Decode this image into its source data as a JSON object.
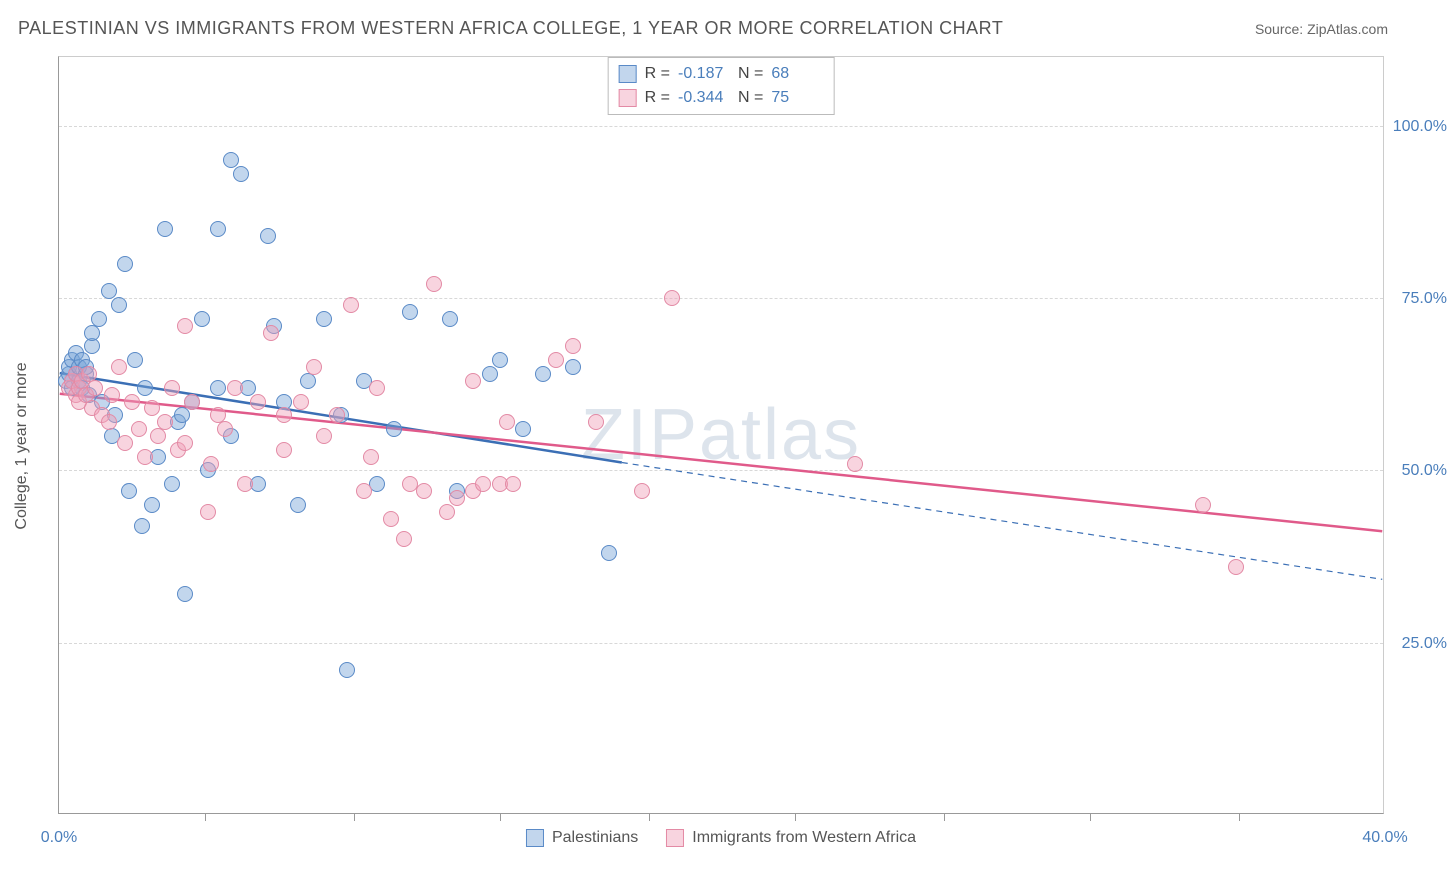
{
  "title": "PALESTINIAN VS IMMIGRANTS FROM WESTERN AFRICA COLLEGE, 1 YEAR OR MORE CORRELATION CHART",
  "source": "Source: ZipAtlas.com",
  "watermark": "ZIPatlas",
  "y_axis_label": "College, 1 year or more",
  "chart": {
    "type": "scatter",
    "xlim": [
      0,
      40
    ],
    "ylim": [
      0,
      110
    ],
    "x_ticks_major": [
      0,
      40
    ],
    "x_ticks_minor": [
      4.4,
      8.9,
      13.3,
      17.8,
      22.2,
      26.7,
      31.1,
      35.6
    ],
    "y_ticks": [
      25,
      50,
      75,
      100
    ],
    "x_tick_labels": {
      "0": "0.0%",
      "40": "40.0%"
    },
    "y_tick_labels": {
      "25": "25.0%",
      "50": "50.0%",
      "75": "75.0%",
      "100": "100.0%"
    },
    "background_color": "#ffffff",
    "grid_color": "#d8d8d8",
    "axis_color": "#999999",
    "marker_radius": 8,
    "marker_border_width": 1.2
  },
  "series": [
    {
      "name": "Palestinians",
      "fill_color": "rgba(120,165,216,0.45)",
      "stroke_color": "#5a8ac7",
      "line_color": "#3b6fb5",
      "line_width": 2.5,
      "R": "-0.187",
      "N": "68",
      "regression": {
        "x1": 0,
        "y1": 64,
        "x2_solid": 17,
        "y2_solid": 51,
        "x2": 40,
        "y2": 34,
        "dashed_after_solid": true
      },
      "points": [
        [
          0.2,
          63
        ],
        [
          0.3,
          64
        ],
        [
          0.3,
          65
        ],
        [
          0.4,
          62
        ],
        [
          0.4,
          66
        ],
        [
          0.5,
          64
        ],
        [
          0.5,
          67
        ],
        [
          0.6,
          63
        ],
        [
          0.6,
          65
        ],
        [
          0.7,
          62
        ],
        [
          0.7,
          66
        ],
        [
          0.8,
          64
        ],
        [
          0.8,
          65
        ],
        [
          0.9,
          61
        ],
        [
          1.0,
          68
        ],
        [
          1.0,
          70
        ],
        [
          1.2,
          72
        ],
        [
          1.3,
          60
        ],
        [
          1.5,
          76
        ],
        [
          1.6,
          55
        ],
        [
          1.7,
          58
        ],
        [
          1.8,
          74
        ],
        [
          2.0,
          80
        ],
        [
          2.1,
          47
        ],
        [
          2.3,
          66
        ],
        [
          2.5,
          42
        ],
        [
          2.6,
          62
        ],
        [
          2.8,
          45
        ],
        [
          3.0,
          52
        ],
        [
          3.2,
          85
        ],
        [
          3.4,
          48
        ],
        [
          3.6,
          57
        ],
        [
          3.7,
          58
        ],
        [
          3.8,
          32
        ],
        [
          4.0,
          60
        ],
        [
          4.3,
          72
        ],
        [
          4.5,
          50
        ],
        [
          4.8,
          62
        ],
        [
          4.8,
          85
        ],
        [
          5.2,
          95
        ],
        [
          5.2,
          55
        ],
        [
          5.5,
          93
        ],
        [
          5.7,
          62
        ],
        [
          6.0,
          48
        ],
        [
          6.3,
          84
        ],
        [
          6.5,
          71
        ],
        [
          6.8,
          60
        ],
        [
          7.2,
          45
        ],
        [
          7.5,
          63
        ],
        [
          8.0,
          72
        ],
        [
          8.5,
          58
        ],
        [
          8.7,
          21
        ],
        [
          9.2,
          63
        ],
        [
          9.6,
          48
        ],
        [
          10.1,
          56
        ],
        [
          10.6,
          73
        ],
        [
          11.8,
          72
        ],
        [
          12.0,
          47
        ],
        [
          13.0,
          64
        ],
        [
          13.3,
          66
        ],
        [
          14.0,
          56
        ],
        [
          14.6,
          64
        ],
        [
          16.6,
          38
        ],
        [
          15.5,
          65
        ]
      ]
    },
    {
      "name": "Immigrants from Western Africa",
      "fill_color": "rgba(240,160,185,0.45)",
      "stroke_color": "#e38aa5",
      "line_color": "#e05a8a",
      "line_width": 2.5,
      "R": "-0.344",
      "N": "75",
      "regression": {
        "x1": 0,
        "y1": 61,
        "x2_solid": 40,
        "y2_solid": 41,
        "x2": 40,
        "y2": 41,
        "dashed_after_solid": false
      },
      "points": [
        [
          0.3,
          62
        ],
        [
          0.4,
          63
        ],
        [
          0.5,
          61
        ],
        [
          0.5,
          64
        ],
        [
          0.6,
          60
        ],
        [
          0.6,
          62
        ],
        [
          0.7,
          63
        ],
        [
          0.8,
          61
        ],
        [
          0.9,
          64
        ],
        [
          1.0,
          59
        ],
        [
          1.1,
          62
        ],
        [
          1.3,
          58
        ],
        [
          1.5,
          57
        ],
        [
          1.6,
          61
        ],
        [
          1.8,
          65
        ],
        [
          2.0,
          54
        ],
        [
          2.2,
          60
        ],
        [
          2.4,
          56
        ],
        [
          2.6,
          52
        ],
        [
          2.8,
          59
        ],
        [
          3.0,
          55
        ],
        [
          3.2,
          57
        ],
        [
          3.4,
          62
        ],
        [
          3.6,
          53
        ],
        [
          3.8,
          54
        ],
        [
          3.8,
          71
        ],
        [
          4.0,
          60
        ],
        [
          4.5,
          44
        ],
        [
          4.8,
          58
        ],
        [
          4.6,
          51
        ],
        [
          5.0,
          56
        ],
        [
          5.3,
          62
        ],
        [
          5.6,
          48
        ],
        [
          6.0,
          60
        ],
        [
          6.4,
          70
        ],
        [
          6.8,
          53
        ],
        [
          6.8,
          58
        ],
        [
          7.3,
          60
        ],
        [
          7.7,
          65
        ],
        [
          8.0,
          55
        ],
        [
          8.4,
          58
        ],
        [
          8.8,
          74
        ],
        [
          9.2,
          47
        ],
        [
          9.4,
          52
        ],
        [
          9.6,
          62
        ],
        [
          10.0,
          43
        ],
        [
          10.4,
          40
        ],
        [
          10.6,
          48
        ],
        [
          11.0,
          47
        ],
        [
          11.3,
          77
        ],
        [
          11.7,
          44
        ],
        [
          12.0,
          46
        ],
        [
          12.5,
          63
        ],
        [
          12.5,
          47
        ],
        [
          12.8,
          48
        ],
        [
          13.3,
          48
        ],
        [
          13.5,
          57
        ],
        [
          13.7,
          48
        ],
        [
          15.0,
          66
        ],
        [
          15.5,
          68
        ],
        [
          16.2,
          57
        ],
        [
          17.6,
          47
        ],
        [
          18.5,
          75
        ],
        [
          24.0,
          51
        ],
        [
          34.5,
          45
        ],
        [
          35.5,
          36
        ]
      ]
    }
  ],
  "legend": {
    "R_label": "R =",
    "N_label": "N ="
  },
  "bottom_legend": [
    {
      "label": "Palestinians",
      "series_index": 0
    },
    {
      "label": "Immigrants from Western Africa",
      "series_index": 1
    }
  ]
}
